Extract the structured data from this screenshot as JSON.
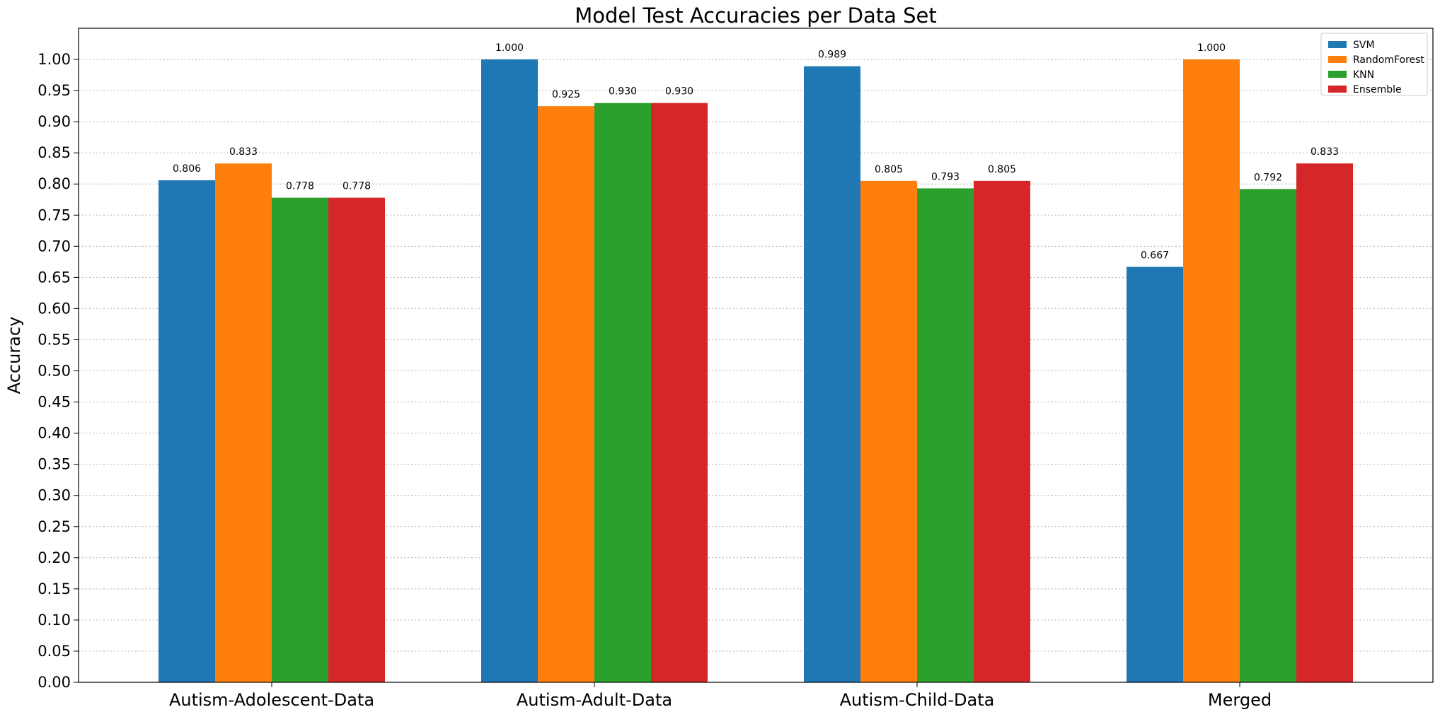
{
  "chart_data": {
    "type": "bar",
    "title": "Model Test Accuracies per Data Set",
    "xlabel": "",
    "ylabel": "Accuracy",
    "ylim": [
      0,
      1.05
    ],
    "yticks": [
      "0.00",
      "0.05",
      "0.10",
      "0.15",
      "0.20",
      "0.25",
      "0.30",
      "0.35",
      "0.40",
      "0.45",
      "0.50",
      "0.55",
      "0.60",
      "0.65",
      "0.70",
      "0.75",
      "0.80",
      "0.85",
      "0.90",
      "0.95",
      "1.00"
    ],
    "grid": "horizontal dotted",
    "legend_position": "top-right",
    "categories": [
      "Autism-Adolescent-Data",
      "Autism-Adult-Data",
      "Autism-Child-Data",
      "Merged"
    ],
    "series": [
      {
        "name": "SVM",
        "color": "#1f77b4",
        "values": [
          0.806,
          1.0,
          0.989,
          0.667
        ],
        "labels": [
          "0.806",
          "1.000",
          "0.989",
          "0.667"
        ]
      },
      {
        "name": "RandomForest",
        "color": "#ff7f0e",
        "values": [
          0.833,
          0.925,
          0.805,
          1.0
        ],
        "labels": [
          "0.833",
          "0.925",
          "0.805",
          "1.000"
        ]
      },
      {
        "name": "KNN",
        "color": "#2ca02c",
        "values": [
          0.778,
          0.93,
          0.793,
          0.792
        ],
        "labels": [
          "0.778",
          "0.930",
          "0.793",
          "0.792"
        ]
      },
      {
        "name": "Ensemble",
        "color": "#d62728",
        "values": [
          0.778,
          0.93,
          0.805,
          0.833
        ],
        "labels": [
          "0.778",
          "0.930",
          "0.805",
          "0.833"
        ]
      }
    ]
  }
}
